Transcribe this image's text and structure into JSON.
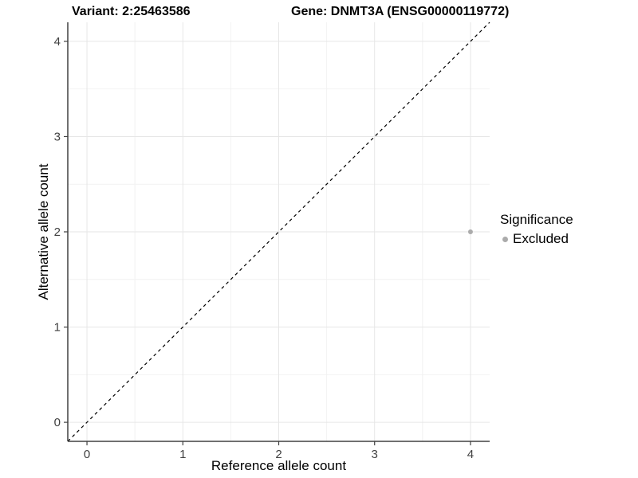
{
  "titles": {
    "variant": "Variant: 2:25463586",
    "gene": "Gene: DNMT3A (ENSG00000119772)"
  },
  "legend": {
    "title": "Significance",
    "items": [
      {
        "label": "Excluded",
        "color": "#ababab"
      }
    ]
  },
  "chart_data": {
    "type": "scatter",
    "title": "Variant: 2:25463586 | Gene: DNMT3A (ENSG00000119772)",
    "xlabel": "Reference allele count",
    "ylabel": "Alternative allele count",
    "xlim": [
      -0.2,
      4.2
    ],
    "ylim": [
      -0.2,
      4.2
    ],
    "x_ticks": [
      0,
      1,
      2,
      3,
      4
    ],
    "y_ticks": [
      0,
      1,
      2,
      3,
      4
    ],
    "grid": "major and minor (0.5 steps), light gray on white",
    "legend_position": "right",
    "series": [
      {
        "name": "Excluded",
        "color": "#ababab",
        "marker_radius": 3,
        "points": [
          {
            "x": 4,
            "y": 2
          }
        ]
      }
    ],
    "reference_line": {
      "kind": "identity y = x",
      "style": "dashed",
      "color": "#000000"
    }
  },
  "style_colors": {
    "background": "#ffffff",
    "grid_major": "#e6e6e6",
    "grid_minor": "#f2f2f2",
    "axis_line": "#404040",
    "tick_label": "#404040"
  }
}
